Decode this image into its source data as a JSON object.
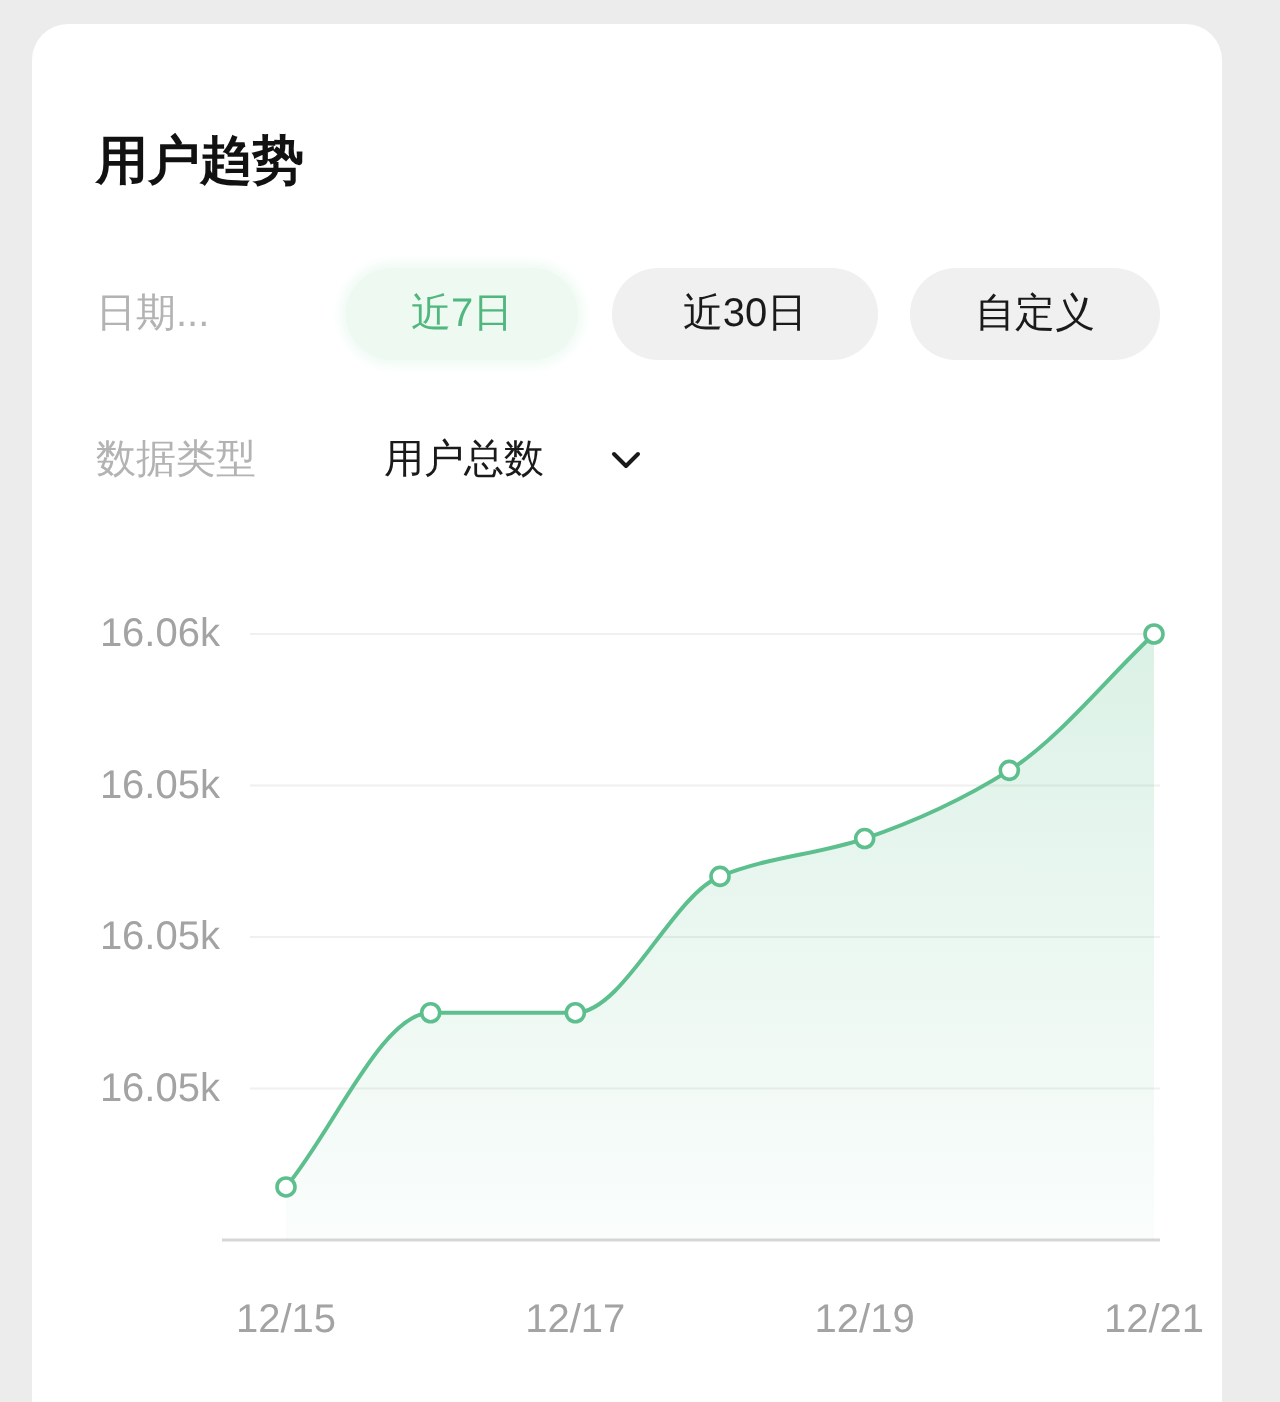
{
  "chart_data": {
    "type": "area",
    "title": "用户趋势",
    "annotations": [
      "日期...",
      "近7日",
      "近30日",
      "自定义",
      "数据类型",
      "用户总数"
    ],
    "categories": [
      "12/15",
      null,
      "12/17",
      null,
      "12/19",
      null,
      "12/21"
    ],
    "series": [
      {
        "color": "#5cbf8d",
        "values": [
          16048.7,
          16051.0,
          16051.0,
          16052.8,
          16053.3,
          16054.2,
          16056.0
        ]
      }
    ],
    "ylim": [
      16048,
      16056
    ],
    "yticks": [
      {
        "value": 16050,
        "label": "16.05k"
      },
      {
        "value": 16052,
        "label": "16.05k"
      },
      {
        "value": 16054,
        "label": "16.05k"
      },
      {
        "value": 16056,
        "label": "16.06k"
      }
    ],
    "grid": "y",
    "marker": "circle"
  }
}
